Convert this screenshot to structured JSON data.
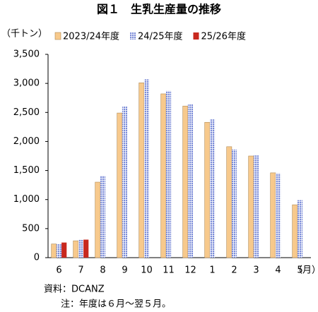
{
  "chart_data": {
    "type": "bar",
    "title": "図１　生乳生産量の推移",
    "y_unit": "（千トン）",
    "x_unit": "（月）",
    "categories": [
      "6",
      "7",
      "8",
      "9",
      "10",
      "11",
      "12",
      "1",
      "2",
      "3",
      "4",
      "5"
    ],
    "series": [
      {
        "name": "2023/24年度",
        "color": "#f7c98c",
        "values": [
          235,
          290,
          1300,
          2490,
          3010,
          2820,
          2610,
          2330,
          1910,
          1750,
          1460,
          910
        ]
      },
      {
        "name": "24/25年度",
        "color": "#7b8bd8",
        "values": [
          230,
          310,
          1410,
          2600,
          3070,
          2870,
          2640,
          2380,
          1860,
          1760,
          1450,
          990
        ]
      },
      {
        "name": "25/26年度",
        "color": "#c8281e",
        "values": [
          260,
          310,
          null,
          null,
          null,
          null,
          null,
          null,
          null,
          null,
          null,
          null
        ]
      }
    ],
    "ylim": [
      0,
      3500
    ],
    "yticks": [
      0,
      500,
      {
        "value": 1000,
        "label": "1,000"
      },
      {
        "value": 1500,
        "label": "1,500"
      },
      {
        "value": 2000,
        "label": "2,000"
      },
      {
        "value": 2500,
        "label": "2,500"
      },
      {
        "value": 3000,
        "label": "3,000"
      },
      {
        "value": 3500,
        "label": "3,500"
      }
    ],
    "grid": false,
    "legend": "top",
    "notes": [
      "資料：DCANZ",
      "注：年度は６月～翌５月。"
    ]
  }
}
